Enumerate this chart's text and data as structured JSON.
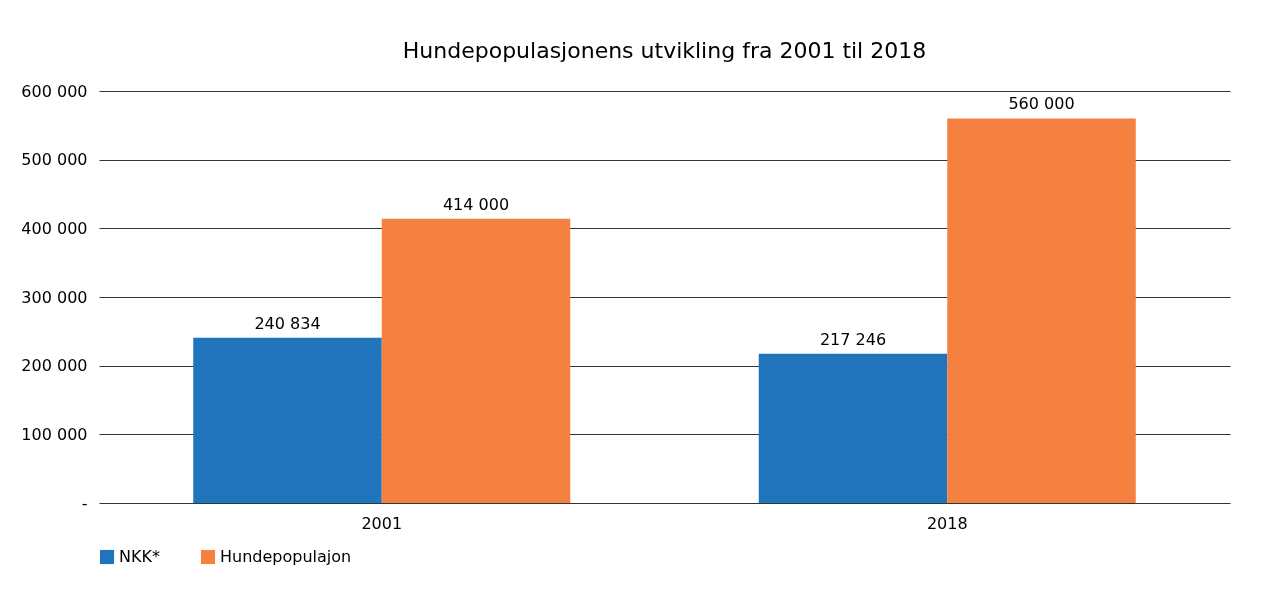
{
  "chart_data": {
    "type": "bar",
    "title": "Hundepopulasjonens utvikling fra 2001 til 2018",
    "categories": [
      "2001",
      "2018"
    ],
    "series": [
      {
        "name": "NKK*",
        "color": "#1f74bb",
        "values": [
          240834,
          217246
        ],
        "value_labels": [
          "240 834",
          "217 246"
        ]
      },
      {
        "name": "Hundepopulajon",
        "color": "#f4813f",
        "values": [
          414000,
          560000
        ],
        "value_labels": [
          "414 000",
          "560 000"
        ]
      }
    ],
    "ylim": [
      0,
      600000
    ],
    "yticks": [
      {
        "value": 0,
        "label": "-"
      },
      {
        "value": 100000,
        "label": "100 000"
      },
      {
        "value": 200000,
        "label": "200 000"
      },
      {
        "value": 300000,
        "label": "300 000"
      },
      {
        "value": 400000,
        "label": "400 000"
      },
      {
        "value": 500000,
        "label": "500 000"
      },
      {
        "value": 600000,
        "label": "600 000"
      }
    ],
    "grid": "y",
    "legend": "bottom"
  }
}
